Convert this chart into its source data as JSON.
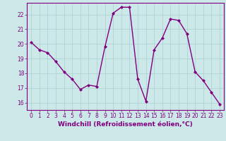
{
  "x": [
    0,
    1,
    2,
    3,
    4,
    5,
    6,
    7,
    8,
    9,
    10,
    11,
    12,
    13,
    14,
    15,
    16,
    17,
    18,
    19,
    20,
    21,
    22,
    23
  ],
  "y": [
    20.1,
    19.6,
    19.4,
    18.8,
    18.1,
    17.6,
    16.9,
    17.2,
    17.1,
    19.8,
    22.1,
    22.5,
    22.5,
    17.6,
    16.1,
    19.6,
    20.4,
    21.7,
    21.6,
    20.7,
    18.1,
    17.5,
    16.7,
    15.9
  ],
  "line_color": "#800080",
  "marker": "D",
  "marker_size": 2,
  "linewidth": 1.0,
  "xlabel": "Windchill (Refroidissement éolien,°C)",
  "xlabel_fontsize": 6.5,
  "xtick_labels": [
    "0",
    "1",
    "2",
    "3",
    "4",
    "5",
    "6",
    "7",
    "8",
    "9",
    "10",
    "11",
    "12",
    "13",
    "14",
    "15",
    "16",
    "17",
    "18",
    "19",
    "20",
    "21",
    "22",
    "23"
  ],
  "ytick_labels": [
    "16",
    "17",
    "18",
    "19",
    "20",
    "21",
    "22"
  ],
  "ylim": [
    15.5,
    22.8
  ],
  "xlim": [
    -0.5,
    23.5
  ],
  "yticks": [
    16,
    17,
    18,
    19,
    20,
    21,
    22
  ],
  "grid_color": "#aed4d4",
  "background_color": "#cde8e8",
  "tick_fontsize": 5.5,
  "tick_label_color": "#800080"
}
